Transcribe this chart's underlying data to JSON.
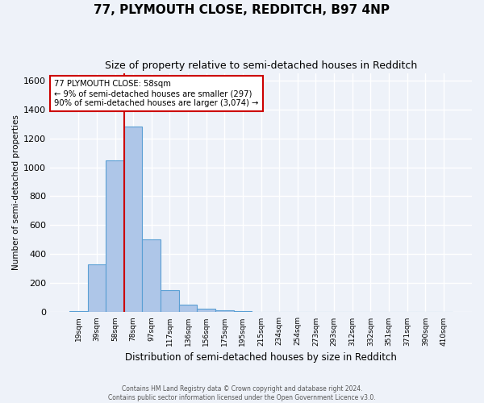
{
  "title": "77, PLYMOUTH CLOSE, REDDITCH, B97 4NP",
  "subtitle": "Size of property relative to semi-detached houses in Redditch",
  "xlabel": "Distribution of semi-detached houses by size in Redditch",
  "ylabel": "Number of semi-detached properties",
  "bin_labels": [
    "19sqm",
    "39sqm",
    "58sqm",
    "78sqm",
    "97sqm",
    "117sqm",
    "136sqm",
    "156sqm",
    "175sqm",
    "195sqm",
    "215sqm",
    "234sqm",
    "254sqm",
    "273sqm",
    "293sqm",
    "312sqm",
    "332sqm",
    "351sqm",
    "371sqm",
    "390sqm",
    "410sqm"
  ],
  "bar_values": [
    10,
    330,
    1050,
    1280,
    500,
    150,
    50,
    25,
    15,
    10,
    0,
    0,
    0,
    0,
    0,
    0,
    0,
    0,
    0,
    0,
    0
  ],
  "bar_color": "#aec6e8",
  "bar_edge_color": "#5a9fd4",
  "red_line_bin_index": 2,
  "annotation_line1": "77 PLYMOUTH CLOSE: 58sqm",
  "annotation_line2": "← 9% of semi-detached houses are smaller (297)",
  "annotation_line3": "90% of semi-detached houses are larger (3,074) →",
  "annotation_box_color": "#ffffff",
  "annotation_box_edge": "#cc0000",
  "ylim": [
    0,
    1650
  ],
  "yticks": [
    0,
    200,
    400,
    600,
    800,
    1000,
    1200,
    1400,
    1600
  ],
  "footer1": "Contains HM Land Registry data © Crown copyright and database right 2024.",
  "footer2": "Contains public sector information licensed under the Open Government Licence v3.0.",
  "background_color": "#eef2f9",
  "grid_color": "#ffffff",
  "title_fontsize": 11,
  "subtitle_fontsize": 9
}
